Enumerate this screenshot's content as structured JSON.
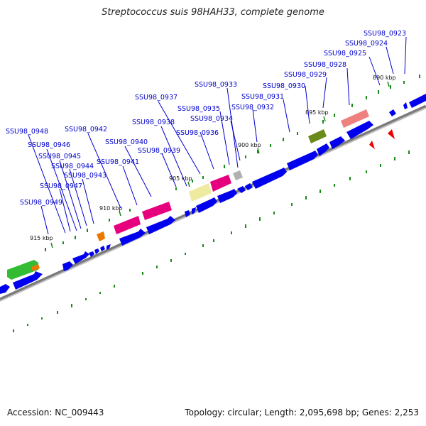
{
  "title": "Streptococcus suis 98HAH33, complete genome",
  "footer": {
    "accession": "Accession: NC_009443",
    "summary": "Topology: circular; Length: 2,095,698 bp; Genes: 2,253"
  },
  "tick_labels": [
    "890 kbp",
    "895 kbp",
    "900 kbp",
    "905 kbp",
    "910 kbp",
    "915 kbp"
  ],
  "gene_labels": [
    "SSU98_0923",
    "SSU98_0924",
    "SSU98_0925",
    "SSU98_0928",
    "SSU98_0929",
    "SSU98_0930",
    "SSU98_0931",
    "SSU98_0932",
    "SSU98_0933",
    "SSU98_0934",
    "SSU98_0935",
    "SSU98_0936",
    "SSU98_0937",
    "SSU98_0938",
    "SSU98_0939",
    "SSU98_0940",
    "SSU98_0941",
    "SSU98_0942",
    "SSU98_0943",
    "SSU98_0944",
    "SSU98_0945",
    "SSU98_0946",
    "SSU98_0947",
    "SSU98_0948",
    "SSU98_0949"
  ],
  "colors": {
    "gene_forward": "#0000ee",
    "category_magenta": "#e6007e",
    "category_salmon": "#ee8080",
    "category_olive": "#6a8a1a",
    "category_khaki": "#eeeaa0",
    "category_grey": "#b0b0b0",
    "category_orange": "#ee7700",
    "category_green": "#33bb33",
    "feature_red": "#ee0000",
    "gc_tick": "#1a8a1a",
    "label_text": "#0000cc",
    "backbone": "#888888"
  }
}
